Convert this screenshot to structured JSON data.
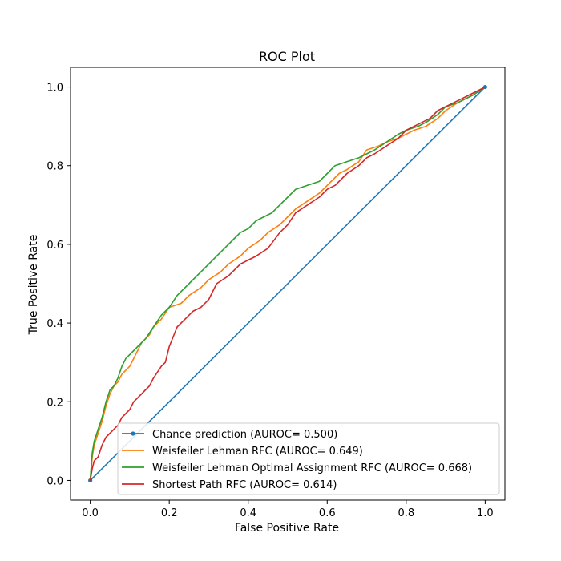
{
  "chart_data": {
    "type": "line",
    "title": "ROC Plot",
    "xlabel": "False Positive Rate",
    "ylabel": "True Positive Rate",
    "xlim": [
      -0.05,
      1.05
    ],
    "ylim": [
      -0.05,
      1.05
    ],
    "xticks": [
      "0.0",
      "0.2",
      "0.4",
      "0.6",
      "0.8",
      "1.0"
    ],
    "yticks": [
      "0.0",
      "0.2",
      "0.4",
      "0.6",
      "0.8",
      "1.0"
    ],
    "grid": false,
    "legend_position": "lower-right",
    "series": [
      {
        "name": "Chance prediction (AUROC= 0.500)",
        "color": "#1f77b4",
        "marker": "dot",
        "x": [
          0.0,
          1.0
        ],
        "y": [
          0.0,
          1.0
        ]
      },
      {
        "name": "Weisfeiler Lehman RFC (AUROC= 0.649)",
        "color": "#ff7f0e",
        "x": [
          0.0,
          0.005,
          0.01,
          0.02,
          0.03,
          0.04,
          0.05,
          0.06,
          0.07,
          0.08,
          0.09,
          0.1,
          0.12,
          0.13,
          0.15,
          0.16,
          0.18,
          0.2,
          0.23,
          0.25,
          0.28,
          0.3,
          0.33,
          0.35,
          0.38,
          0.4,
          0.43,
          0.45,
          0.48,
          0.5,
          0.52,
          0.55,
          0.58,
          0.6,
          0.63,
          0.65,
          0.68,
          0.7,
          0.73,
          0.75,
          0.78,
          0.8,
          0.82,
          0.85,
          0.88,
          0.9,
          0.93,
          0.95,
          0.97,
          1.0
        ],
        "y": [
          0.0,
          0.06,
          0.09,
          0.12,
          0.15,
          0.19,
          0.22,
          0.24,
          0.25,
          0.27,
          0.28,
          0.29,
          0.33,
          0.35,
          0.37,
          0.39,
          0.41,
          0.44,
          0.45,
          0.47,
          0.49,
          0.51,
          0.53,
          0.55,
          0.57,
          0.59,
          0.61,
          0.63,
          0.65,
          0.67,
          0.69,
          0.71,
          0.73,
          0.75,
          0.78,
          0.79,
          0.81,
          0.84,
          0.85,
          0.86,
          0.87,
          0.88,
          0.89,
          0.9,
          0.92,
          0.94,
          0.96,
          0.97,
          0.98,
          1.0
        ]
      },
      {
        "name": "Weisfeiler Lehman Optimal Assignment RFC (AUROC= 0.668)",
        "color": "#2ca02c",
        "x": [
          0.0,
          0.005,
          0.01,
          0.02,
          0.03,
          0.04,
          0.05,
          0.06,
          0.07,
          0.08,
          0.09,
          0.1,
          0.12,
          0.14,
          0.16,
          0.18,
          0.2,
          0.22,
          0.25,
          0.28,
          0.3,
          0.32,
          0.34,
          0.36,
          0.38,
          0.4,
          0.42,
          0.44,
          0.46,
          0.48,
          0.5,
          0.52,
          0.55,
          0.58,
          0.6,
          0.62,
          0.65,
          0.68,
          0.7,
          0.72,
          0.75,
          0.78,
          0.8,
          0.83,
          0.85,
          0.88,
          0.9,
          0.93,
          0.95,
          0.97,
          1.0
        ],
        "y": [
          0.0,
          0.07,
          0.1,
          0.13,
          0.16,
          0.2,
          0.23,
          0.24,
          0.26,
          0.29,
          0.31,
          0.32,
          0.34,
          0.36,
          0.39,
          0.42,
          0.44,
          0.47,
          0.5,
          0.53,
          0.55,
          0.57,
          0.59,
          0.61,
          0.63,
          0.64,
          0.66,
          0.67,
          0.68,
          0.7,
          0.72,
          0.74,
          0.75,
          0.76,
          0.78,
          0.8,
          0.81,
          0.82,
          0.83,
          0.84,
          0.86,
          0.88,
          0.89,
          0.9,
          0.91,
          0.93,
          0.95,
          0.96,
          0.97,
          0.98,
          1.0
        ]
      },
      {
        "name": "Shortest Path RFC (AUROC= 0.614)",
        "color": "#d62728",
        "x": [
          0.0,
          0.005,
          0.01,
          0.02,
          0.03,
          0.04,
          0.05,
          0.06,
          0.07,
          0.08,
          0.09,
          0.1,
          0.11,
          0.12,
          0.14,
          0.15,
          0.16,
          0.18,
          0.19,
          0.2,
          0.22,
          0.24,
          0.26,
          0.28,
          0.3,
          0.32,
          0.35,
          0.38,
          0.4,
          0.42,
          0.45,
          0.48,
          0.5,
          0.52,
          0.55,
          0.58,
          0.6,
          0.62,
          0.65,
          0.68,
          0.7,
          0.72,
          0.75,
          0.78,
          0.8,
          0.82,
          0.84,
          0.86,
          0.88,
          0.9,
          0.92,
          0.94,
          0.96,
          0.98,
          1.0
        ],
        "y": [
          0.0,
          0.03,
          0.05,
          0.06,
          0.09,
          0.11,
          0.12,
          0.13,
          0.14,
          0.16,
          0.17,
          0.18,
          0.2,
          0.21,
          0.23,
          0.24,
          0.26,
          0.29,
          0.3,
          0.34,
          0.39,
          0.41,
          0.43,
          0.44,
          0.46,
          0.5,
          0.52,
          0.55,
          0.56,
          0.57,
          0.59,
          0.63,
          0.65,
          0.68,
          0.7,
          0.72,
          0.74,
          0.75,
          0.78,
          0.8,
          0.82,
          0.83,
          0.85,
          0.87,
          0.89,
          0.9,
          0.91,
          0.92,
          0.94,
          0.95,
          0.96,
          0.97,
          0.98,
          0.99,
          1.0
        ]
      }
    ]
  }
}
